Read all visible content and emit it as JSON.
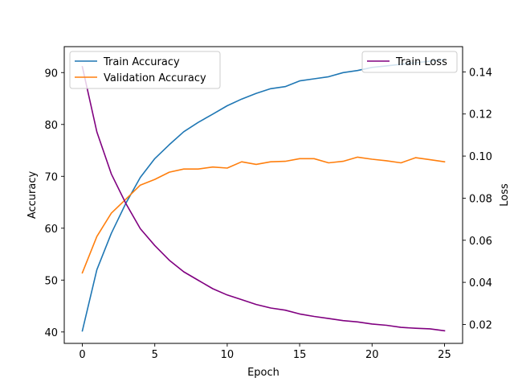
{
  "chart_data": {
    "type": "line",
    "xlabel": "Epoch",
    "ylabel_left": "Accuracy",
    "ylabel_right": "Loss",
    "xlim": [
      -1.25,
      26.25
    ],
    "ylim_left": [
      37.8,
      95.0
    ],
    "ylim_right": [
      0.011,
      0.152
    ],
    "xticks": [
      0,
      5,
      10,
      15,
      20,
      25
    ],
    "yticks_left": [
      40,
      50,
      60,
      70,
      80,
      90
    ],
    "yticks_right": [
      0.02,
      0.04,
      0.06,
      0.08,
      0.1,
      0.12,
      0.14
    ],
    "x": [
      0,
      1,
      2,
      3,
      4,
      5,
      6,
      7,
      8,
      9,
      10,
      11,
      12,
      13,
      14,
      15,
      16,
      17,
      18,
      19,
      20,
      21,
      22,
      23,
      24,
      25
    ],
    "series": [
      {
        "name": "Train Accuracy",
        "axis": "left",
        "color": "#1f77b4",
        "values": [
          40.2,
          52.0,
          59.0,
          64.8,
          69.8,
          73.4,
          76.1,
          78.6,
          80.4,
          82.0,
          83.6,
          84.9,
          86.0,
          86.9,
          87.3,
          88.4,
          88.8,
          89.2,
          90.0,
          90.4,
          91.0,
          91.3,
          91.6,
          91.9,
          92.2,
          92.5
        ]
      },
      {
        "name": "Validation Accuracy",
        "axis": "left",
        "color": "#ff7f0e",
        "values": [
          51.4,
          58.4,
          62.9,
          65.6,
          68.3,
          69.4,
          70.8,
          71.4,
          71.4,
          71.8,
          71.6,
          72.8,
          72.3,
          72.8,
          72.9,
          73.4,
          73.4,
          72.6,
          72.9,
          73.7,
          73.3,
          73.0,
          72.6,
          73.6,
          73.2,
          72.8
        ]
      },
      {
        "name": "Train Loss",
        "axis": "right",
        "color": "#800080",
        "values": [
          0.1425,
          0.1115,
          0.0915,
          0.0775,
          0.0655,
          0.0575,
          0.0505,
          0.045,
          0.041,
          0.037,
          0.034,
          0.0318,
          0.0295,
          0.0278,
          0.0268,
          0.025,
          0.0238,
          0.0228,
          0.0218,
          0.0212,
          0.0202,
          0.0196,
          0.0186,
          0.0182,
          0.0179,
          0.017
        ]
      }
    ],
    "legend_left": {
      "placement": "top-left",
      "series": [
        0,
        1
      ]
    },
    "legend_right": {
      "placement": "top-right",
      "series": [
        2
      ]
    },
    "grid": false
  }
}
